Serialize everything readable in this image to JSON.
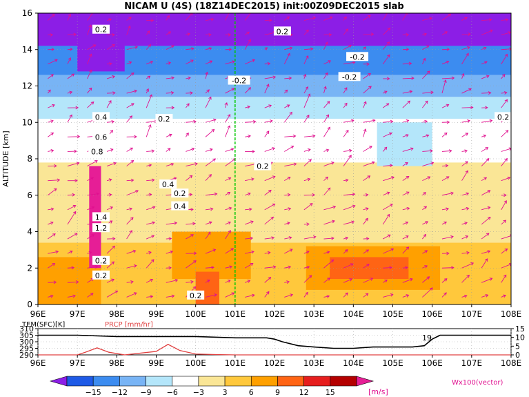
{
  "title": "NICAM U (4S) (18Z14DEC2015) init:00Z09DEC2015 slab",
  "units_label": "[m/s]",
  "vector_label": "Wx100(vector)",
  "colors": {
    "bin_colors": [
      "#8c1ee6",
      "#1e5ae6",
      "#3c8cf0",
      "#78b4f5",
      "#b4e6fa",
      "#ffffff",
      "#fae696",
      "#ffc83c",
      "#ffa000",
      "#ff6414",
      "#e61e1e",
      "#b40000",
      "#e61e96"
    ],
    "vector": "#e0108f",
    "marker_line": "#00c800",
    "tem_line": "#000000",
    "prcp_line": "#e04040"
  },
  "chart_data": [
    {
      "type": "heatmap",
      "name": "U wind cross-section",
      "ylabel": "ALTITUDE [km]",
      "x_ticks": [
        "96E",
        "97E",
        "98E",
        "99E",
        "100E",
        "101E",
        "102E",
        "103E",
        "104E",
        "105E",
        "106E",
        "107E",
        "108E"
      ],
      "y_ticks": [
        "0",
        "2",
        "4",
        "6",
        "8",
        "10",
        "12",
        "14",
        "16"
      ],
      "xlim": [
        96,
        108
      ],
      "ylim": [
        0,
        16
      ],
      "grid": true,
      "marker_longitude": 101,
      "layers": [
        {
          "z0": 0,
          "z1": 3.4,
          "value": 7
        },
        {
          "z0": 3.4,
          "z1": 7.8,
          "value": 5
        },
        {
          "z0": 7.8,
          "z1": 10.2,
          "value": 0
        },
        {
          "z0": 10.2,
          "z1": 11.4,
          "value": -4
        },
        {
          "z0": 11.4,
          "z1": 12.6,
          "value": -7
        },
        {
          "z0": 12.6,
          "z1": 14.2,
          "value": -10
        },
        {
          "z0": 14.2,
          "z1": 16,
          "value": -16
        }
      ],
      "patches": [
        {
          "lon": [
            102.8,
            106.2
          ],
          "z": [
            0.8,
            3.2
          ],
          "value": 10
        },
        {
          "lon": [
            99.4,
            101.4
          ],
          "z": [
            1.4,
            4.0
          ],
          "value": 10
        },
        {
          "lon": [
            100.0,
            100.6
          ],
          "z": [
            0.0,
            1.8
          ],
          "value": 13
        },
        {
          "lon": [
            103.4,
            105.4
          ],
          "z": [
            1.4,
            2.6
          ],
          "value": 13
        },
        {
          "lon": [
            96.0,
            97.6
          ],
          "z": [
            0.0,
            2.6
          ],
          "value": 10
        },
        {
          "lon": [
            104.6,
            106.0
          ],
          "z": [
            7.6,
            10.0
          ],
          "value": -4
        },
        {
          "lon": [
            97.0,
            98.2
          ],
          "z": [
            12.8,
            16.0
          ],
          "value": -16
        },
        {
          "lon": [
            97.3,
            97.6
          ],
          "z": [
            2.0,
            7.6
          ],
          "value": 20
        }
      ],
      "contour_labels": [
        {
          "text": "0.2",
          "lon": 97.6,
          "z": 15.1
        },
        {
          "text": "0.4",
          "lon": 97.6,
          "z": 10.3
        },
        {
          "text": "0.6",
          "lon": 97.6,
          "z": 9.2
        },
        {
          "text": "0.8",
          "lon": 97.5,
          "z": 8.4
        },
        {
          "text": "1.4",
          "lon": 97.6,
          "z": 4.8
        },
        {
          "text": "1.2",
          "lon": 97.6,
          "z": 4.2
        },
        {
          "text": "0.2",
          "lon": 97.6,
          "z": 2.4
        },
        {
          "text": "0.2",
          "lon": 97.6,
          "z": 1.6
        },
        {
          "text": "0.2",
          "lon": 99.2,
          "z": 10.2
        },
        {
          "text": "0.4",
          "lon": 99.3,
          "z": 6.6
        },
        {
          "text": "0.2",
          "lon": 99.6,
          "z": 6.1
        },
        {
          "text": "0.4",
          "lon": 99.6,
          "z": 5.4
        },
        {
          "text": "0.2",
          "lon": 100.0,
          "z": 0.5
        },
        {
          "text": "-0.2",
          "lon": 101.1,
          "z": 12.3
        },
        {
          "text": "0.2",
          "lon": 101.7,
          "z": 7.6
        },
        {
          "text": "0.2",
          "lon": 102.2,
          "z": 15.0
        },
        {
          "text": "-0.2",
          "lon": 104.1,
          "z": 13.6
        },
        {
          "text": "-0.2",
          "lon": 103.9,
          "z": 12.5
        },
        {
          "text": "0.2",
          "lon": 107.8,
          "z": 10.3
        }
      ]
    },
    {
      "type": "line",
      "name": "surface panel",
      "series": [
        {
          "name": "TEM(SFC)[K]",
          "x": [
            96,
            97,
            98,
            99,
            100,
            101,
            101.8,
            102,
            102.2,
            102.6,
            103,
            103.5,
            104,
            104.5,
            105,
            105.5,
            105.8,
            106,
            106.2,
            107,
            108
          ],
          "values": [
            305,
            305,
            304,
            304,
            304,
            303,
            303,
            302,
            300,
            297,
            296,
            295,
            295,
            296,
            296,
            296,
            297,
            302,
            305,
            305,
            305
          ]
        },
        {
          "name": "PRCP [mm/hr]",
          "x": [
            96,
            97,
            97.2,
            97.5,
            97.8,
            98.2,
            99,
            99.3,
            99.6,
            100,
            100.5,
            101,
            108
          ],
          "values": [
            0,
            0,
            1.5,
            4,
            1.5,
            0,
            2,
            6,
            2.5,
            0.5,
            0.2,
            0,
            0
          ]
        }
      ],
      "left_axis_ticks": [
        "310",
        "305",
        "300",
        "295",
        "290"
      ],
      "right_axis_ticks": [
        "15",
        "10",
        "5",
        "0"
      ],
      "left_range": [
        290,
        310
      ],
      "right_range": [
        0,
        15
      ],
      "x_ticks": [
        "96E",
        "97E",
        "98E",
        "99E",
        "100E",
        "101E",
        "102E",
        "103E",
        "104E",
        "105E",
        "106E",
        "107E",
        "108E"
      ],
      "annotation": "19"
    },
    {
      "type": "bar",
      "name": "colorbar",
      "categories": [
        "-15",
        "-12",
        "-9",
        "-6",
        "-3",
        "3",
        "6",
        "9",
        "12",
        "15"
      ]
    }
  ]
}
